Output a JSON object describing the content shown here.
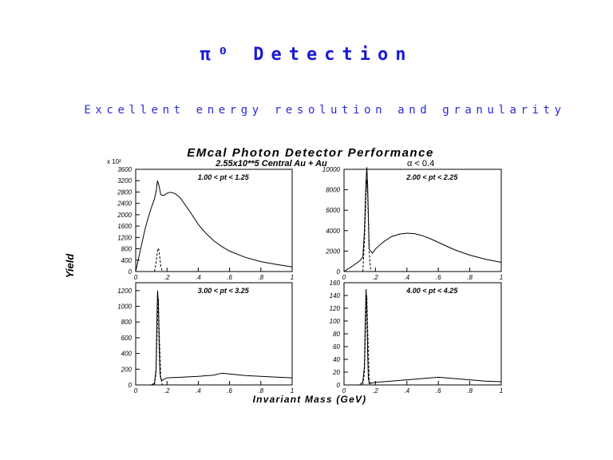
{
  "slide": {
    "title": "π⁰ Detection",
    "subtitle": "Excellent energy resolution and granularity"
  },
  "figure": {
    "title": "EMcal Photon Detector Performance",
    "condition": "2.55x10**5 Central Au + Au",
    "asymmetry_cut": "α < 0.4",
    "y_multiplier": "x 10²",
    "xlabel": "Invariant Mass (GeV)",
    "ylabel": "Yield"
  },
  "chart_data": [
    {
      "type": "line",
      "panel_label": "1.00 < pt < 1.25",
      "xlim": [
        0,
        1
      ],
      "ylim": [
        0,
        3600
      ],
      "x_ticks": [
        0,
        0.2,
        0.4,
        0.6,
        0.8,
        1
      ],
      "y_ticks": [
        0,
        400,
        800,
        1200,
        1600,
        2000,
        2400,
        2800,
        3200,
        3600
      ],
      "series": [
        {
          "x": [
            0,
            0.02,
            0.04,
            0.06,
            0.08,
            0.1,
            0.12,
            0.13,
            0.14,
            0.15,
            0.16,
            0.18,
            0.2,
            0.22,
            0.25,
            0.28,
            0.3,
            0.35,
            0.4,
            0.45,
            0.5,
            0.55,
            0.6,
            0.7,
            0.8,
            0.9,
            1.0
          ],
          "values": [
            0,
            500,
            1000,
            1500,
            1900,
            2250,
            2550,
            2800,
            3200,
            3000,
            2700,
            2680,
            2760,
            2790,
            2750,
            2620,
            2480,
            2080,
            1660,
            1340,
            1080,
            880,
            720,
            500,
            350,
            250,
            160
          ]
        },
        {
          "x": [
            0.12,
            0.13,
            0.14,
            0.145,
            0.15,
            0.16,
            0.17
          ],
          "values": [
            0,
            300,
            750,
            820,
            700,
            200,
            0
          ]
        }
      ]
    },
    {
      "type": "line",
      "panel_label": "2.00 < pt < 2.25",
      "xlim": [
        0,
        1
      ],
      "ylim": [
        0,
        10000
      ],
      "x_ticks": [
        0,
        0.2,
        0.4,
        0.6,
        0.8,
        1
      ],
      "y_ticks": [
        0,
        2000,
        4000,
        6000,
        8000,
        10000
      ],
      "series": [
        {
          "x": [
            0,
            0.05,
            0.1,
            0.12,
            0.13,
            0.14,
            0.145,
            0.15,
            0.16,
            0.18,
            0.2,
            0.25,
            0.3,
            0.35,
            0.4,
            0.45,
            0.5,
            0.55,
            0.6,
            0.7,
            0.8,
            0.9,
            1.0
          ],
          "values": [
            0,
            500,
            1050,
            1400,
            4000,
            9000,
            10200,
            8500,
            2200,
            1800,
            2200,
            2900,
            3400,
            3650,
            3750,
            3700,
            3500,
            3200,
            2850,
            2150,
            1600,
            1200,
            900
          ]
        },
        {
          "x": [
            0.12,
            0.13,
            0.14,
            0.145,
            0.15,
            0.16,
            0.17
          ],
          "values": [
            0,
            3000,
            7500,
            9000,
            7500,
            2000,
            0
          ]
        }
      ]
    },
    {
      "type": "line",
      "panel_label": "3.00 < pt < 3.25",
      "xlim": [
        0,
        1
      ],
      "ylim": [
        0,
        1300
      ],
      "x_ticks": [
        0,
        0.2,
        0.4,
        0.6,
        0.8,
        1
      ],
      "y_ticks": [
        0,
        200,
        400,
        600,
        800,
        1000,
        1200
      ],
      "series": [
        {
          "x": [
            0,
            0.1,
            0.12,
            0.13,
            0.135,
            0.14,
            0.145,
            0.15,
            0.155,
            0.16,
            0.17,
            0.2,
            0.3,
            0.4,
            0.5,
            0.55,
            0.6,
            0.7,
            0.8,
            0.9,
            1.0
          ],
          "values": [
            0,
            0,
            20,
            200,
            800,
            1200,
            1050,
            500,
            150,
            80,
            60,
            90,
            100,
            110,
            125,
            150,
            140,
            120,
            110,
            100,
            90
          ]
        },
        {
          "x": [
            0.12,
            0.13,
            0.14,
            0.145,
            0.15,
            0.16,
            0.17
          ],
          "values": [
            0,
            150,
            900,
            1100,
            700,
            100,
            0
          ]
        }
      ]
    },
    {
      "type": "line",
      "panel_label": "4.00 < pt < 4.25",
      "xlim": [
        0,
        1
      ],
      "ylim": [
        0,
        160
      ],
      "x_ticks": [
        0,
        0.2,
        0.4,
        0.6,
        0.8,
        1
      ],
      "y_ticks": [
        0,
        20,
        40,
        60,
        80,
        100,
        120,
        140,
        160
      ],
      "series": [
        {
          "x": [
            0,
            0.1,
            0.12,
            0.13,
            0.135,
            0.14,
            0.145,
            0.15,
            0.155,
            0.16,
            0.2,
            0.3,
            0.4,
            0.5,
            0.6,
            0.7,
            0.8,
            0.9,
            1.0
          ],
          "values": [
            0,
            0,
            5,
            30,
            100,
            150,
            120,
            50,
            10,
            2,
            4,
            6,
            8,
            10,
            12,
            10,
            8,
            6,
            5
          ]
        },
        {
          "x": [
            0.12,
            0.13,
            0.14,
            0.145,
            0.15,
            0.16,
            0.17
          ],
          "values": [
            0,
            20,
            120,
            140,
            90,
            10,
            0
          ]
        }
      ]
    }
  ]
}
